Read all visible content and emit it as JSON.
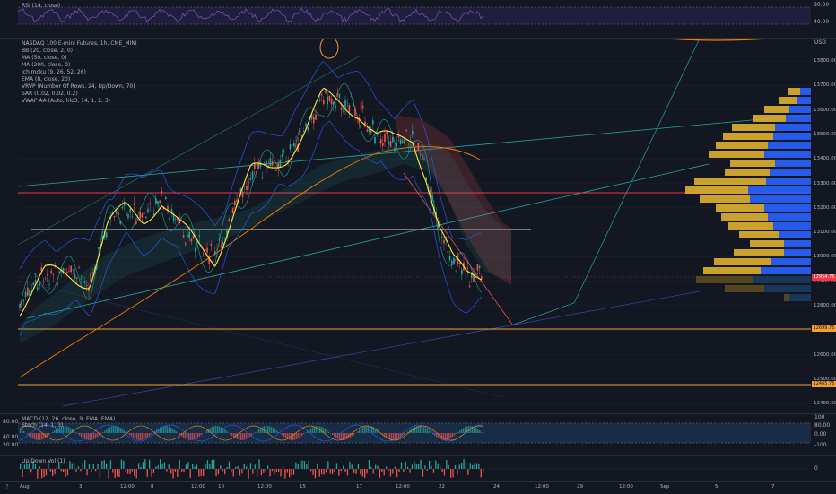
{
  "rsi": {
    "label": "RSI (14, close)",
    "ticks": [
      "80.00",
      "40.00"
    ]
  },
  "main": {
    "title": "NASDAQ 100 E-mini Futures, 1h, CME_MINI",
    "indicators": [
      "BB (20, close, 2, 0)",
      "MA (50, close, 0)",
      "MA (200, close, 0)",
      "Ichimoku (9, 26, 52, 26)",
      "EMA (8, close, 20)",
      "VRVP (Number Of Rows, 24, Up/Down, 70)",
      "SAR (0.02, 0.02, 0.2)",
      "VWAP AA (Auto, hlc3, 14, 1, 2, 3)"
    ],
    "currency": "USD",
    "price_ticks": [
      "13800.00",
      "13700.00",
      "13600.00",
      "13500.00",
      "13400.00",
      "13300.00",
      "13200.00",
      "13100.00",
      "13000.00",
      "12900.00",
      "12800.00",
      "12700.00",
      "12600.00",
      "12500.00",
      "12400.00"
    ],
    "price_tags": [
      {
        "text": "12954.75",
        "color": "#f23645"
      },
      {
        "text": "12699.75",
        "color": "#f0a030"
      },
      {
        "text": "12465.75",
        "color": "#f0a030"
      }
    ]
  },
  "macd": {
    "label": "MACD (12, 26, close, 9, EMA, EMA)",
    "label2": "Stoch (14, 1, 3)",
    "ticks": [
      "100",
      "80.00",
      "0.00",
      "-100"
    ],
    "left_ticks": [
      "80.00",
      "40.00",
      "20.00"
    ]
  },
  "volume": {
    "label": "Up/Down Vol (1)",
    "ticks": [
      "0"
    ]
  },
  "time_axis": {
    "labels": [
      "Aug",
      "3",
      "12:00",
      "8",
      "12:00",
      "10",
      "12:00",
      "15",
      "17",
      "12:00",
      "22",
      "24",
      "12:00",
      "29",
      "12:00",
      "Sep",
      "5",
      "7"
    ]
  },
  "colors": {
    "up": "#26a69a",
    "down": "#ef5350",
    "ema": "#ffeb3b",
    "vrvp_up": "#2962ff",
    "vrvp_down": "#e0b030",
    "bg": "#131722"
  }
}
